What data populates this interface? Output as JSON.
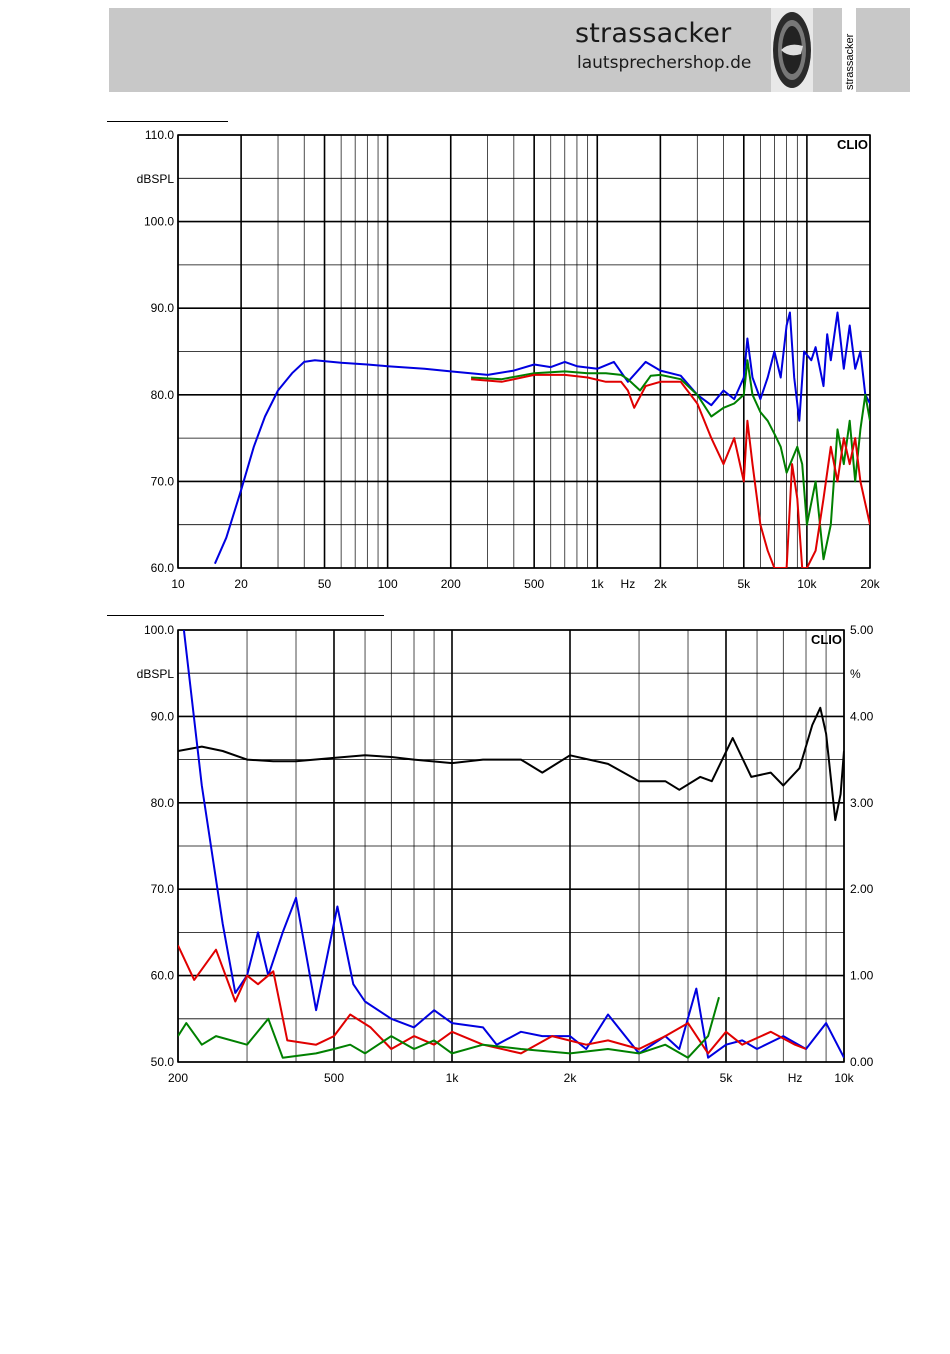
{
  "header": {
    "brand_name": "strassacker",
    "brand_url": "lautsprechershop.de",
    "logo_vertical_text": "strassacker",
    "background": "#c8c8c8"
  },
  "colors": {
    "blue": "#0000e0",
    "green": "#008000",
    "red": "#e00000",
    "black": "#000000"
  },
  "chart_data": [
    {
      "type": "line",
      "watermark": "CLIO",
      "ylabel": "dBSPL",
      "xlabel": "Hz",
      "x_scale": "log",
      "xlim": [
        10,
        20000
      ],
      "ylim": [
        60,
        110
      ],
      "y_ticks": [
        "60.0",
        "70.0",
        "80.0",
        "90.0",
        "100.0",
        "110.0"
      ],
      "x_ticks": [
        {
          "v": 10,
          "label": "10"
        },
        {
          "v": 20,
          "label": "20"
        },
        {
          "v": 50,
          "label": "50"
        },
        {
          "v": 100,
          "label": "100"
        },
        {
          "v": 200,
          "label": "200"
        },
        {
          "v": 500,
          "label": "500"
        },
        {
          "v": 1000,
          "label": "1k"
        },
        {
          "v": 2000,
          "label": "2k"
        },
        {
          "v": 5000,
          "label": "5k"
        },
        {
          "v": 10000,
          "label": "10k"
        },
        {
          "v": 20000,
          "label": "20k"
        }
      ],
      "series": [
        {
          "color": "#0000e0",
          "points": [
            [
              15,
              60.5
            ],
            [
              17,
              63.5
            ],
            [
              20,
              69
            ],
            [
              23,
              74
            ],
            [
              26,
              77.5
            ],
            [
              30,
              80.5
            ],
            [
              35,
              82.5
            ],
            [
              40,
              83.8
            ],
            [
              45,
              84
            ],
            [
              60,
              83.7
            ],
            [
              80,
              83.5
            ],
            [
              100,
              83.3
            ],
            [
              150,
              83
            ],
            [
              200,
              82.7
            ],
            [
              300,
              82.3
            ],
            [
              400,
              82.8
            ],
            [
              500,
              83.5
            ],
            [
              600,
              83.2
            ],
            [
              700,
              83.8
            ],
            [
              800,
              83.3
            ],
            [
              1000,
              83
            ],
            [
              1200,
              83.8
            ],
            [
              1400,
              81.5
            ],
            [
              1700,
              83.8
            ],
            [
              2000,
              82.8
            ],
            [
              2500,
              82.2
            ],
            [
              3000,
              80
            ],
            [
              3500,
              78.8
            ],
            [
              4000,
              80.5
            ],
            [
              4500,
              79.5
            ],
            [
              5000,
              82
            ],
            [
              5200,
              86.5
            ],
            [
              5500,
              82
            ],
            [
              6000,
              79.5
            ],
            [
              6500,
              82
            ],
            [
              7000,
              85
            ],
            [
              7500,
              82
            ],
            [
              8000,
              88
            ],
            [
              8300,
              89.5
            ],
            [
              8700,
              82
            ],
            [
              9200,
              77
            ],
            [
              9700,
              85
            ],
            [
              10500,
              84
            ],
            [
              11000,
              85.5
            ],
            [
              12000,
              81
            ],
            [
              12500,
              87
            ],
            [
              13000,
              84
            ],
            [
              14000,
              89.5
            ],
            [
              15000,
              83
            ],
            [
              16000,
              88
            ],
            [
              17000,
              83
            ],
            [
              18000,
              85
            ],
            [
              19000,
              80
            ],
            [
              20000,
              79
            ]
          ]
        },
        {
          "color": "#008000",
          "points": [
            [
              250,
              82
            ],
            [
              350,
              81.8
            ],
            [
              500,
              82.5
            ],
            [
              700,
              82.7
            ],
            [
              900,
              82.5
            ],
            [
              1100,
              82.5
            ],
            [
              1300,
              82.3
            ],
            [
              1400,
              81.8
            ],
            [
              1600,
              80.5
            ],
            [
              1800,
              82.2
            ],
            [
              2000,
              82.3
            ],
            [
              2500,
              81.8
            ],
            [
              3000,
              80
            ],
            [
              3500,
              77.5
            ],
            [
              4000,
              78.5
            ],
            [
              4500,
              79
            ],
            [
              5000,
              80
            ],
            [
              5200,
              84
            ],
            [
              5500,
              80
            ],
            [
              6000,
              78
            ],
            [
              6500,
              77
            ],
            [
              7000,
              75.5
            ],
            [
              7500,
              74
            ],
            [
              8000,
              71
            ],
            [
              9000,
              74
            ],
            [
              9500,
              72
            ],
            [
              10000,
              65
            ],
            [
              11000,
              70
            ],
            [
              12000,
              61
            ],
            [
              13000,
              65
            ],
            [
              14000,
              76
            ],
            [
              15000,
              72
            ],
            [
              16000,
              77
            ],
            [
              17000,
              70
            ],
            [
              18000,
              76
            ],
            [
              19000,
              80
            ],
            [
              20000,
              77
            ]
          ]
        },
        {
          "color": "#e00000",
          "points": [
            [
              250,
              81.8
            ],
            [
              350,
              81.5
            ],
            [
              500,
              82.3
            ],
            [
              700,
              82.3
            ],
            [
              900,
              82
            ],
            [
              1100,
              81.5
            ],
            [
              1300,
              81.5
            ],
            [
              1400,
              80.5
            ],
            [
              1500,
              78.5
            ],
            [
              1700,
              81
            ],
            [
              2000,
              81.5
            ],
            [
              2500,
              81.5
            ],
            [
              3000,
              79
            ],
            [
              3500,
              75
            ],
            [
              4000,
              72
            ],
            [
              4500,
              75
            ],
            [
              5000,
              70
            ],
            [
              5200,
              77
            ],
            [
              5500,
              72
            ],
            [
              6000,
              65
            ],
            [
              6500,
              62
            ],
            [
              7000,
              60
            ],
            [
              7500,
              60
            ],
            [
              8000,
              60
            ],
            [
              8500,
              72
            ],
            [
              9000,
              68
            ],
            [
              9500,
              60
            ],
            [
              10000,
              60
            ],
            [
              11000,
              62
            ],
            [
              12000,
              68
            ],
            [
              13000,
              74
            ],
            [
              14000,
              70
            ],
            [
              15000,
              75
            ],
            [
              16000,
              72
            ],
            [
              17000,
              75
            ],
            [
              18000,
              70
            ],
            [
              20000,
              65
            ]
          ]
        }
      ]
    },
    {
      "type": "line",
      "watermark": "CLIO",
      "ylabel": "dBSPL",
      "y2label": "%",
      "xlabel": "Hz",
      "x_scale": "log",
      "xlim": [
        200,
        10000
      ],
      "ylim": [
        50,
        100
      ],
      "y2lim": [
        0,
        5
      ],
      "y_ticks": [
        "50.0",
        "60.0",
        "70.0",
        "80.0",
        "90.0",
        "100.0"
      ],
      "y2_ticks": [
        "0.00",
        "1.00",
        "2.00",
        "3.00",
        "4.00",
        "5.00"
      ],
      "x_ticks": [
        {
          "v": 200,
          "label": "200"
        },
        {
          "v": 500,
          "label": "500"
        },
        {
          "v": 1000,
          "label": "1k"
        },
        {
          "v": 2000,
          "label": "2k"
        },
        {
          "v": 5000,
          "label": "5k"
        },
        {
          "v": 10000,
          "label": "10k"
        }
      ],
      "series": [
        {
          "color": "#000000",
          "axis": "left",
          "points": [
            [
              200,
              86
            ],
            [
              230,
              86.5
            ],
            [
              260,
              86
            ],
            [
              300,
              85
            ],
            [
              350,
              84.8
            ],
            [
              400,
              84.8
            ],
            [
              500,
              85.2
            ],
            [
              600,
              85.5
            ],
            [
              700,
              85.3
            ],
            [
              800,
              85
            ],
            [
              1000,
              84.6
            ],
            [
              1200,
              85
            ],
            [
              1500,
              85
            ],
            [
              1700,
              83.5
            ],
            [
              2000,
              85.5
            ],
            [
              2500,
              84.5
            ],
            [
              3000,
              82.5
            ],
            [
              3500,
              82.5
            ],
            [
              3800,
              81.5
            ],
            [
              4300,
              83
            ],
            [
              4600,
              82.5
            ],
            [
              5200,
              87.5
            ],
            [
              5800,
              83
            ],
            [
              6500,
              83.5
            ],
            [
              7000,
              82
            ],
            [
              7700,
              84
            ],
            [
              8300,
              89
            ],
            [
              8700,
              91
            ],
            [
              9000,
              88
            ],
            [
              9500,
              78
            ],
            [
              9800,
              81
            ],
            [
              10000,
              86
            ]
          ]
        },
        {
          "color": "#0000e0",
          "axis": "right",
          "points": [
            [
              207,
              5
            ],
            [
              230,
              3.2
            ],
            [
              260,
              1.6
            ],
            [
              280,
              0.8
            ],
            [
              300,
              1.0
            ],
            [
              320,
              1.5
            ],
            [
              340,
              1.0
            ],
            [
              370,
              1.5
            ],
            [
              400,
              1.9
            ],
            [
              450,
              0.6
            ],
            [
              510,
              1.8
            ],
            [
              560,
              0.9
            ],
            [
              600,
              0.7
            ],
            [
              700,
              0.5
            ],
            [
              800,
              0.4
            ],
            [
              900,
              0.6
            ],
            [
              1000,
              0.45
            ],
            [
              1200,
              0.4
            ],
            [
              1300,
              0.2
            ],
            [
              1500,
              0.35
            ],
            [
              1700,
              0.3
            ],
            [
              2000,
              0.3
            ],
            [
              2200,
              0.15
            ],
            [
              2500,
              0.55
            ],
            [
              3000,
              0.1
            ],
            [
              3500,
              0.3
            ],
            [
              3800,
              0.15
            ],
            [
              4200,
              0.85
            ],
            [
              4500,
              0.05
            ],
            [
              5000,
              0.2
            ],
            [
              5500,
              0.25
            ],
            [
              6000,
              0.15
            ],
            [
              7000,
              0.3
            ],
            [
              8000,
              0.15
            ],
            [
              9000,
              0.45
            ],
            [
              10000,
              0.05
            ]
          ]
        },
        {
          "color": "#e00000",
          "axis": "right",
          "points": [
            [
              200,
              1.35
            ],
            [
              220,
              0.95
            ],
            [
              250,
              1.3
            ],
            [
              280,
              0.7
            ],
            [
              300,
              1.0
            ],
            [
              320,
              0.9
            ],
            [
              350,
              1.05
            ],
            [
              380,
              0.25
            ],
            [
              450,
              0.2
            ],
            [
              500,
              0.3
            ],
            [
              550,
              0.55
            ],
            [
              620,
              0.4
            ],
            [
              700,
              0.15
            ],
            [
              800,
              0.3
            ],
            [
              900,
              0.2
            ],
            [
              1000,
              0.35
            ],
            [
              1200,
              0.2
            ],
            [
              1500,
              0.1
            ],
            [
              1800,
              0.3
            ],
            [
              2200,
              0.2
            ],
            [
              2500,
              0.25
            ],
            [
              3000,
              0.15
            ],
            [
              3500,
              0.3
            ],
            [
              4000,
              0.45
            ],
            [
              4500,
              0.1
            ],
            [
              5000,
              0.35
            ],
            [
              5500,
              0.2
            ],
            [
              6500,
              0.35
            ],
            [
              7500,
              0.2
            ],
            [
              8000,
              0.15
            ]
          ]
        },
        {
          "color": "#008000",
          "axis": "right",
          "points": [
            [
              200,
              0.3
            ],
            [
              210,
              0.45
            ],
            [
              230,
              0.2
            ],
            [
              250,
              0.3
            ],
            [
              300,
              0.2
            ],
            [
              340,
              0.5
            ],
            [
              370,
              0.05
            ],
            [
              450,
              0.1
            ],
            [
              500,
              0.15
            ],
            [
              550,
              0.2
            ],
            [
              600,
              0.1
            ],
            [
              700,
              0.3
            ],
            [
              800,
              0.15
            ],
            [
              900,
              0.25
            ],
            [
              1000,
              0.1
            ],
            [
              1200,
              0.2
            ],
            [
              1500,
              0.15
            ],
            [
              2000,
              0.1
            ],
            [
              2500,
              0.15
            ],
            [
              3000,
              0.1
            ],
            [
              3500,
              0.2
            ],
            [
              4000,
              0.05
            ],
            [
              4500,
              0.3
            ],
            [
              4800,
              0.75
            ]
          ]
        }
      ]
    }
  ]
}
